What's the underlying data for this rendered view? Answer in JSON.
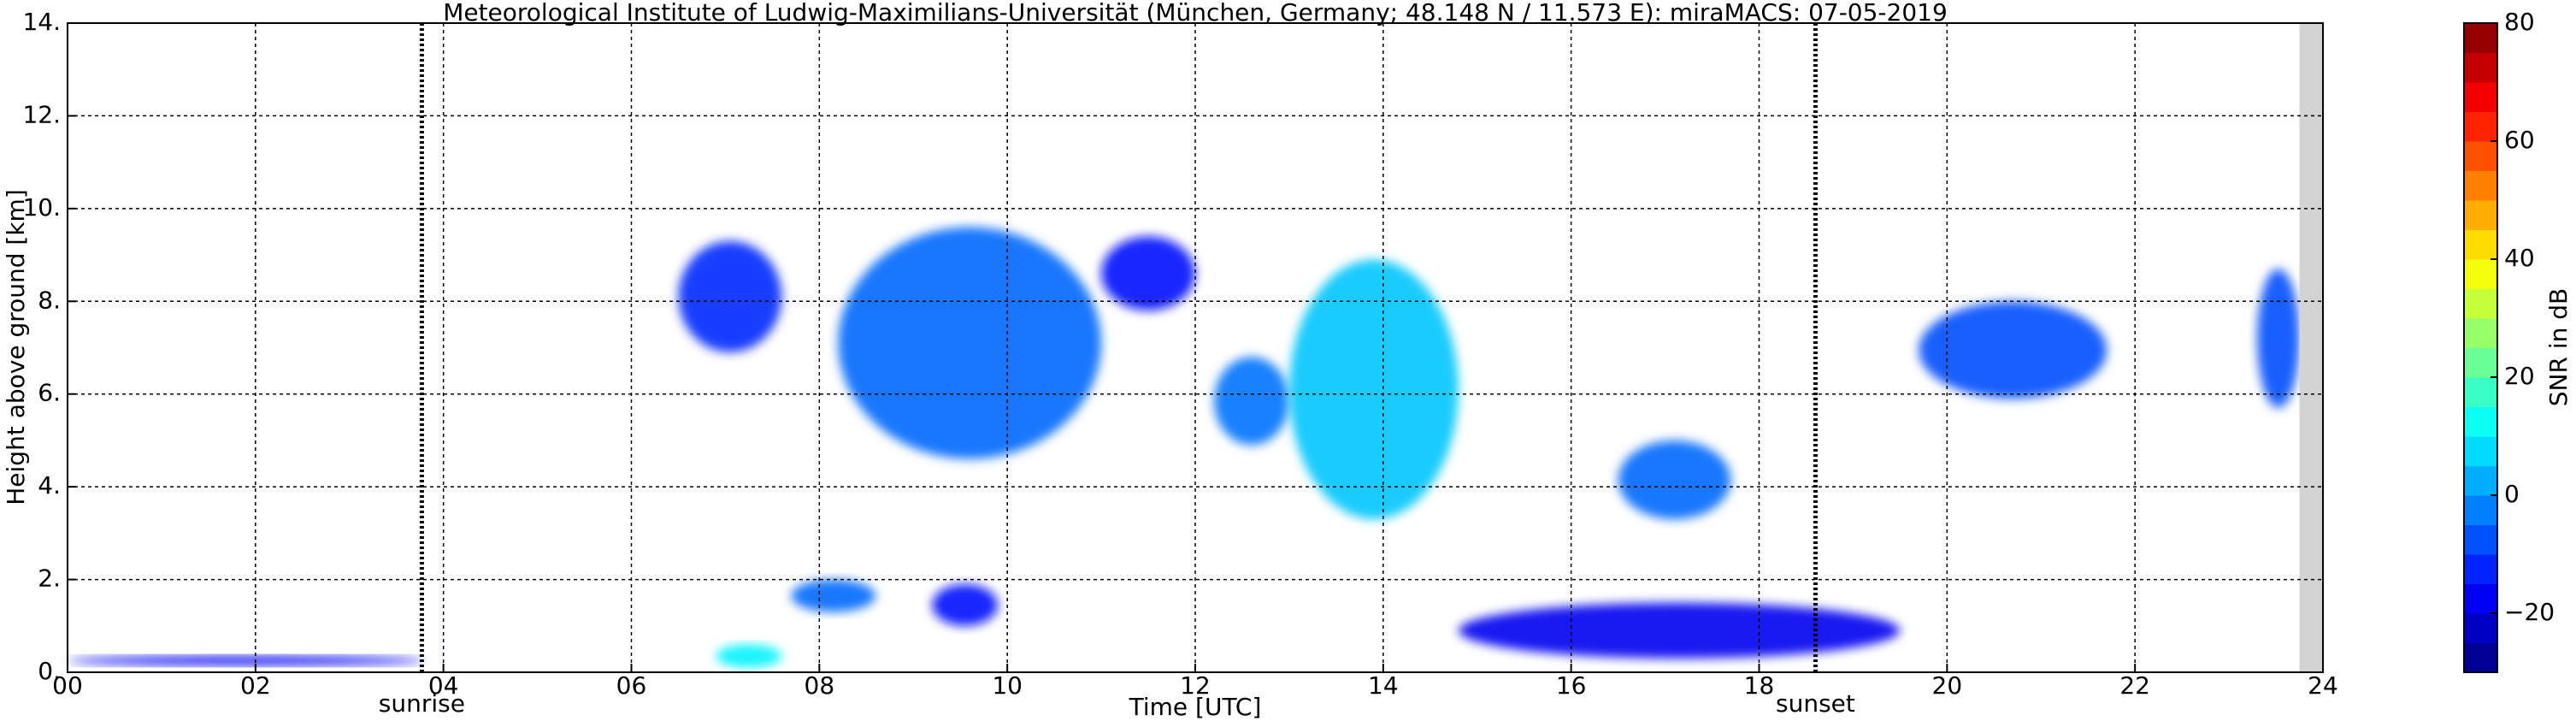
{
  "chart_data": {
    "type": "time-height",
    "title": "Meteorological Institute of Ludwig-Maximilians-Universität (München, Germany; 48.148 N / 11.573 E):    miraMACS: 07-05-2019",
    "x_label": "Time [UTC]",
    "y_label": "Height above ground [km]",
    "xlim": [
      0,
      24
    ],
    "xticks": [
      {
        "value": 0,
        "label": "00"
      },
      {
        "value": 2,
        "label": "02"
      },
      {
        "value": 4,
        "label": "04"
      },
      {
        "value": 6,
        "label": "06"
      },
      {
        "value": 8,
        "label": "08"
      },
      {
        "value": 10,
        "label": "10"
      },
      {
        "value": 12,
        "label": "12"
      },
      {
        "value": 14,
        "label": "14"
      },
      {
        "value": 16,
        "label": "16"
      },
      {
        "value": 18,
        "label": "18"
      },
      {
        "value": 20,
        "label": "20"
      },
      {
        "value": 22,
        "label": "22"
      },
      {
        "value": 24,
        "label": "24"
      }
    ],
    "ylim": [
      0,
      14
    ],
    "yticks": [
      {
        "value": 0,
        "label": "0."
      },
      {
        "value": 2,
        "label": "2."
      },
      {
        "value": 4,
        "label": "4."
      },
      {
        "value": 6,
        "label": "6."
      },
      {
        "value": 8,
        "label": "8."
      },
      {
        "value": 10,
        "label": "10."
      },
      {
        "value": 12,
        "label": "12."
      },
      {
        "value": 14,
        "label": "14."
      }
    ],
    "grid": true,
    "colorbar": {
      "label": "SNR in dB",
      "clim": [
        -30,
        80
      ],
      "ticks": [
        {
          "value": -20,
          "label": "−20"
        },
        0,
        20,
        40,
        60,
        80
      ]
    },
    "sun_events": [
      {
        "time": 3.77,
        "label": "sunrise"
      },
      {
        "time": 18.6,
        "label": "sunset"
      }
    ],
    "no_data": [
      23.75,
      24
    ],
    "echoes": [
      {
        "start": 6.5,
        "end": 7.6,
        "bottom": 6.9,
        "top": 9.3,
        "snr": -12
      },
      {
        "start": 8.2,
        "end": 11.0,
        "bottom": 4.6,
        "top": 9.6,
        "snr": -5
      },
      {
        "start": 11.0,
        "end": 12.0,
        "bottom": 7.8,
        "top": 9.4,
        "snr": -15
      },
      {
        "start": 12.2,
        "end": 13.0,
        "bottom": 4.9,
        "top": 6.8,
        "snr": -4
      },
      {
        "start": 13.0,
        "end": 14.8,
        "bottom": 3.3,
        "top": 8.9,
        "snr": 5
      },
      {
        "start": 16.5,
        "end": 17.7,
        "bottom": 3.3,
        "top": 5.0,
        "snr": -5
      },
      {
        "start": 19.7,
        "end": 21.7,
        "bottom": 5.9,
        "top": 8.0,
        "snr": -8
      },
      {
        "start": 23.3,
        "end": 23.75,
        "bottom": 5.7,
        "top": 8.7,
        "snr": -8
      },
      {
        "start": 7.7,
        "end": 8.6,
        "bottom": 1.3,
        "top": 2.0,
        "snr": -5
      },
      {
        "start": 9.2,
        "end": 9.9,
        "bottom": 1.0,
        "top": 1.9,
        "snr": -15
      },
      {
        "start": 6.9,
        "end": 7.6,
        "bottom": 0.1,
        "top": 0.6,
        "snr": 10
      },
      {
        "start": 14.8,
        "end": 19.5,
        "bottom": 0.3,
        "top": 1.5,
        "snr": -18
      },
      {
        "start": 0.0,
        "end": 3.8,
        "bottom": 0.15,
        "top": 0.35,
        "snr": -18
      }
    ]
  }
}
